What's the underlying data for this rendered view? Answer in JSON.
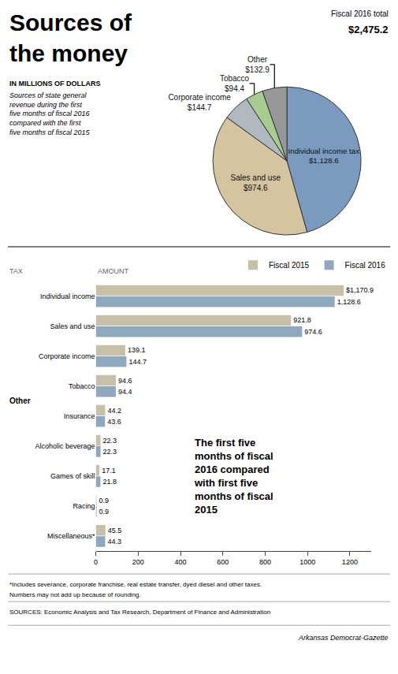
{
  "chart_data": [
    {
      "type": "pie",
      "title": "Sources of\nthe money",
      "subtitle": "IN MILLIONS OF DOLLARS",
      "description": "Sources of state general\nrevenue during the first\nfive months of fiscal 2016\ncompared with the first\nfive months of fiscal 2015",
      "total_title": "Fiscal 2016 total",
      "total_label": "$2,475.2",
      "categories": [
        "Individual income tax",
        "Sales and use",
        "Corporate income",
        "Tobacco",
        "Other"
      ],
      "values": [
        1128.6,
        974.6,
        144.7,
        94.4,
        132.9
      ],
      "value_labels": [
        "$1,128.6",
        "$974.6",
        "$144.7",
        "$94.4",
        "$132.9"
      ],
      "colors": [
        "#7a9bbf",
        "#d4c5a0",
        "#b0b8c0",
        "#a8cc90",
        "#989898"
      ],
      "data_labels": true
    },
    {
      "type": "bar",
      "orientation": "horizontal",
      "categories": [
        "Individual income",
        "Sales and use",
        "Corporate income",
        "Tobacco",
        "Insurance",
        "Alcoholic beverage",
        "Games of skill",
        "Racing",
        "Miscellaneous*"
      ],
      "category_groups": [
        {
          "label": "Other",
          "categories": [
            "Insurance",
            "Alcoholic beverage",
            "Games of skill",
            "Racing",
            "Miscellaneous*"
          ]
        }
      ],
      "column_labels": [
        "TAX",
        "AMOUNT"
      ],
      "series": [
        {
          "name": "Fiscal 2015",
          "color": "#c8bfa8",
          "values": [
            1170.9,
            921.8,
            139.1,
            94.6,
            44.2,
            22.3,
            17.1,
            0.9,
            45.5
          ],
          "value_labels": [
            "$1,170.9",
            "921.8",
            "139.1",
            "94.6",
            "44.2",
            "22.3",
            "17.1",
            "0.9",
            "45.5"
          ]
        },
        {
          "name": "Fiscal 2016",
          "color": "#8fa8be",
          "values": [
            1128.6,
            974.6,
            144.7,
            94.4,
            43.6,
            22.3,
            21.8,
            0.9,
            44.3
          ],
          "value_labels": [
            "1,128.6",
            "974.6",
            "144.7",
            "94.4",
            "43.6",
            "22.3",
            "21.8",
            "0.9",
            "44.3"
          ]
        }
      ],
      "xlim": [
        0,
        1300
      ],
      "xticks": [
        0,
        200,
        400,
        600,
        800,
        1000,
        1200
      ],
      "grid": false,
      "legend": "top right",
      "data_labels": true,
      "annotation": "The first five\nmonths of fiscal\n2016 compared\nwith first five\nmonths of fiscal\n2015",
      "footnotes": [
        "*Includes severance, corporate franchise, real estate transfer, dyed diesel and other taxes.",
        "Numbers may not add up because of rounding."
      ],
      "source": "SOURCES: Economic Analysis and Tax Research, Department of Finance and Administration",
      "credit": "Arkansas Democrat-Gazette"
    }
  ]
}
